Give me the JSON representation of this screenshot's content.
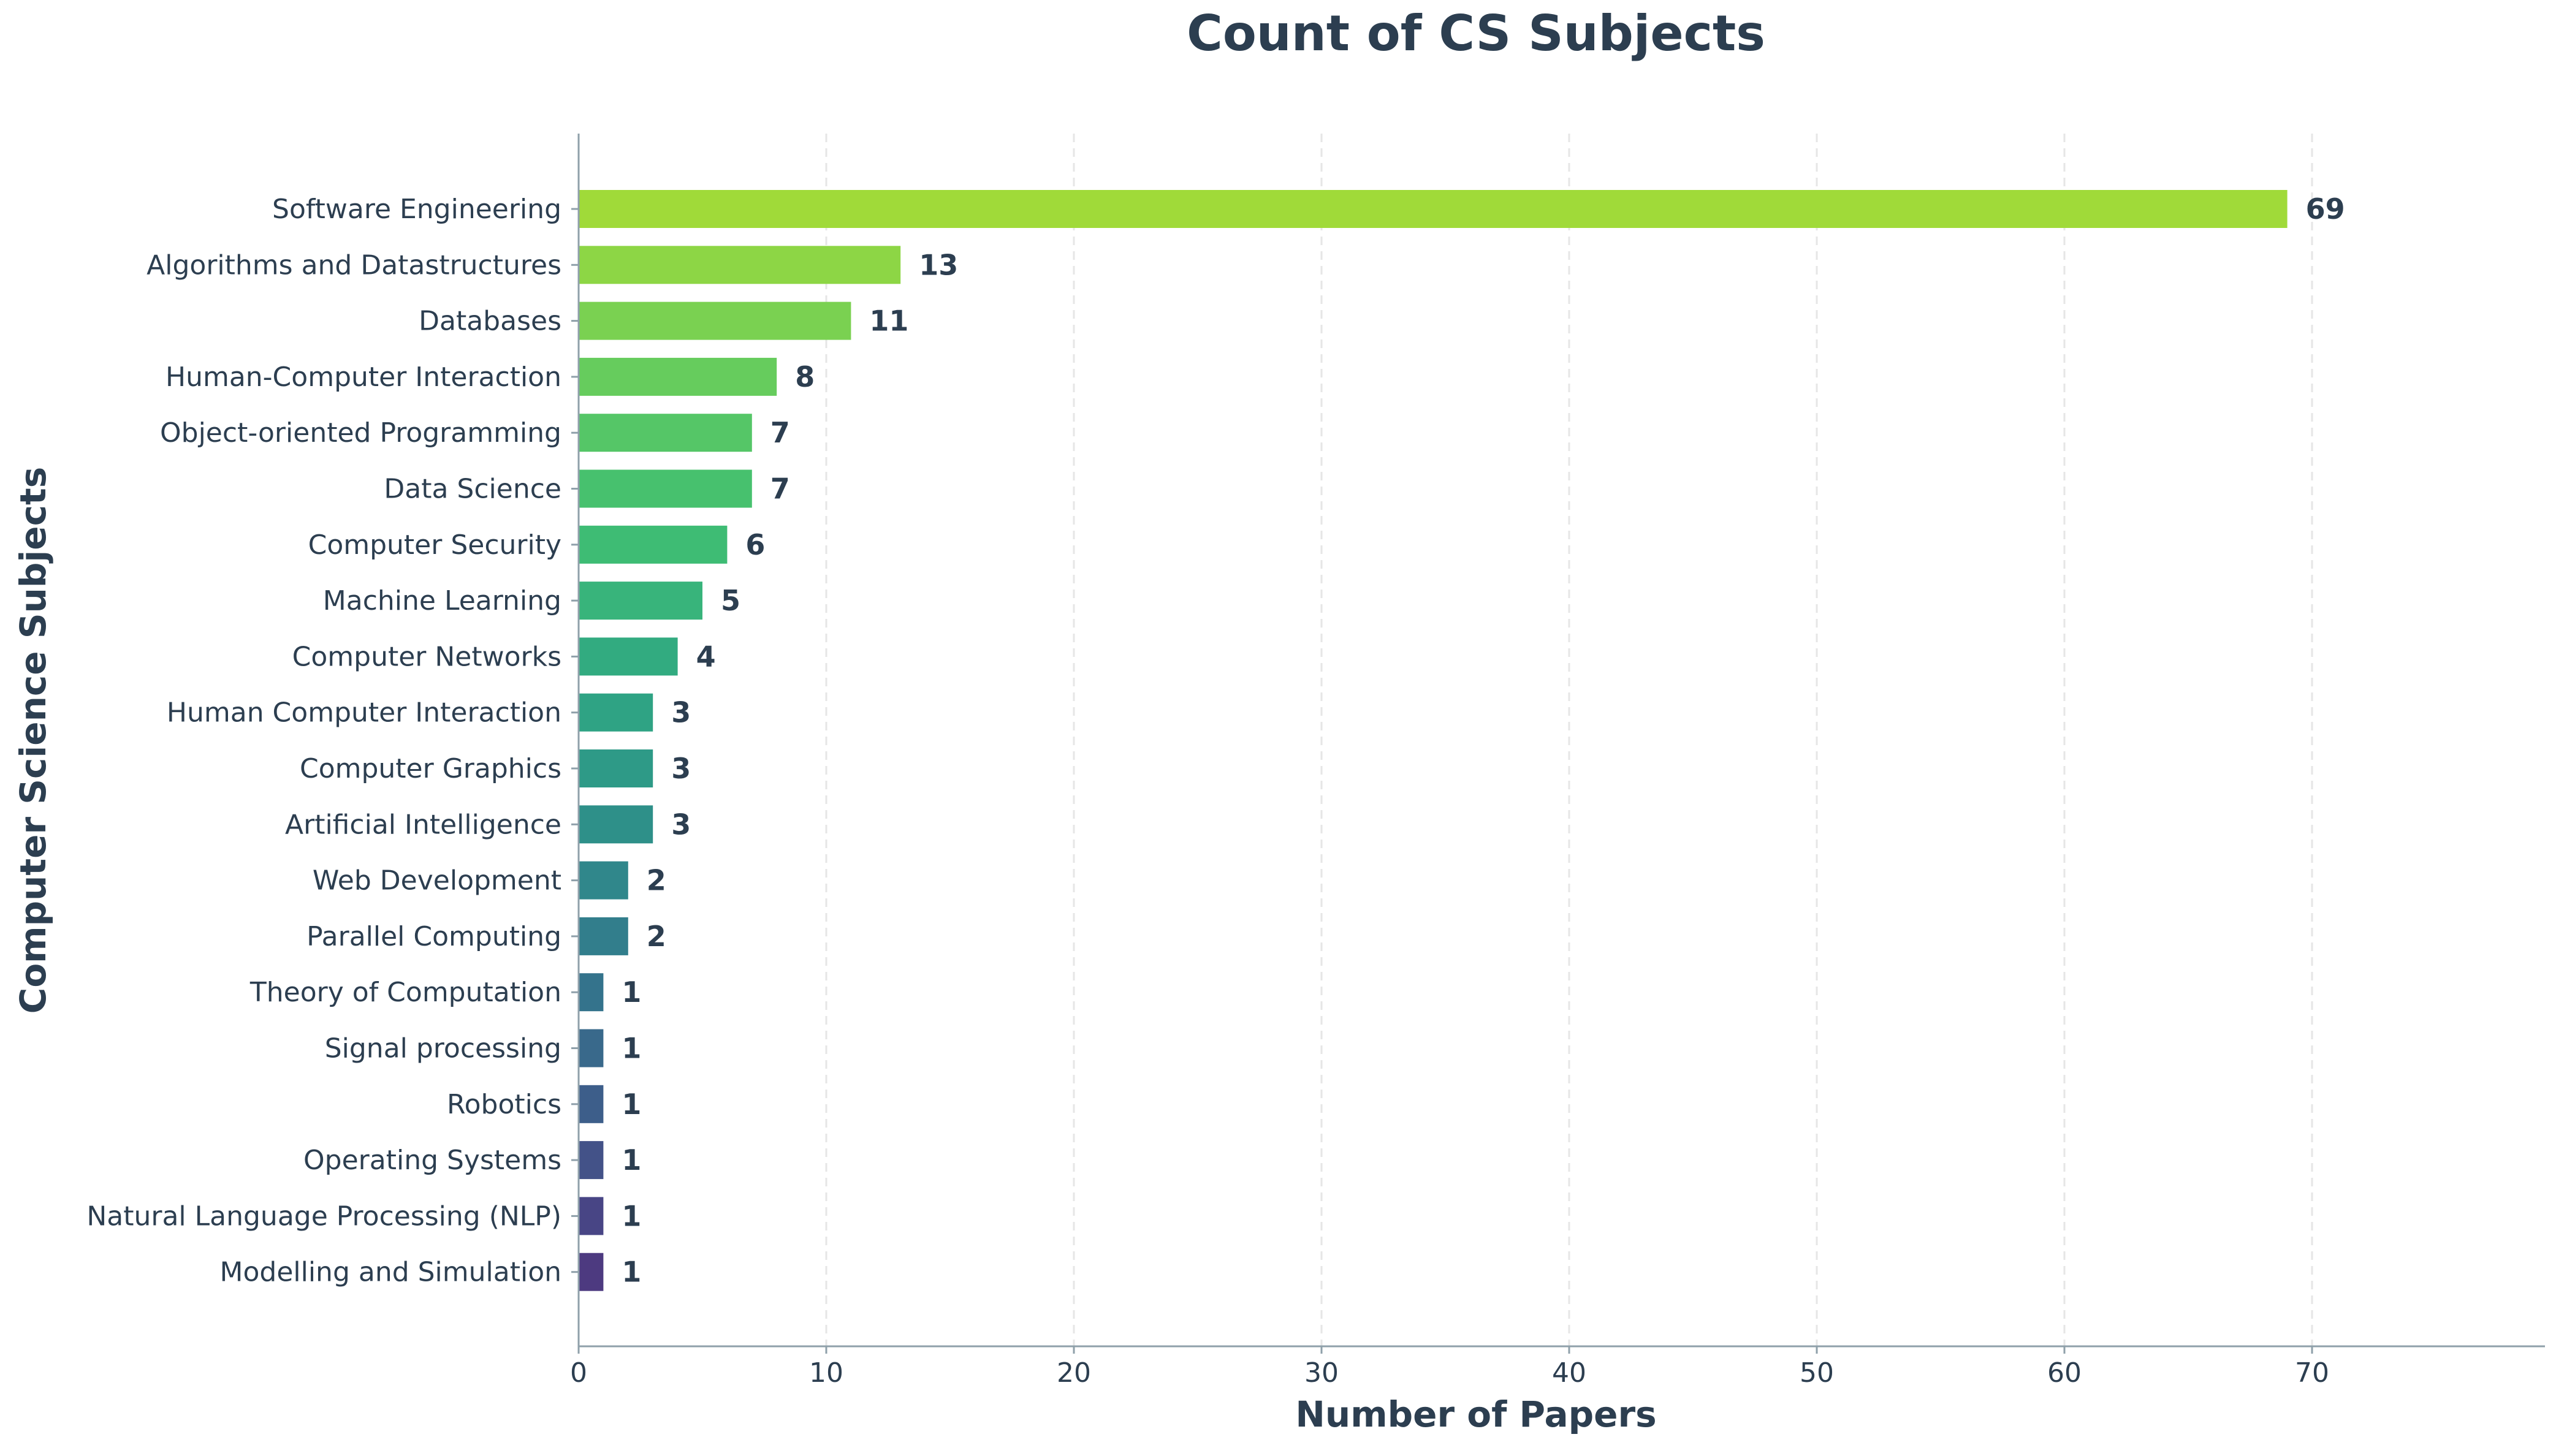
{
  "chart_data": {
    "type": "bar",
    "orientation": "horizontal",
    "title": "Count of CS Subjects",
    "xlabel": "Number of Papers",
    "ylabel": "Computer Science Subjects",
    "xlim": [
      0,
      79.35
    ],
    "xticks": [
      0,
      10,
      20,
      30,
      40,
      50,
      60,
      70
    ],
    "grid": "x-dashed",
    "categories": [
      "Software Engineering",
      "Algorithms and Datastructures",
      "Databases",
      "Human-Computer Interaction",
      "Object-oriented Programming",
      "Data Science",
      "Computer Security",
      "Machine Learning",
      "Computer Networks",
      "Human Computer Interaction",
      "Computer Graphics",
      "Artificial Intelligence",
      "Web Development",
      "Parallel Computing",
      "Theory of Computation",
      "Signal processing",
      "Robotics",
      "Operating Systems",
      "Natural Language Processing (NLP)",
      "Modelling and Simulation"
    ],
    "values": [
      69,
      13,
      11,
      8,
      7,
      7,
      6,
      5,
      4,
      3,
      3,
      3,
      2,
      2,
      1,
      1,
      1,
      1,
      1,
      1
    ],
    "bar_colors": [
      "#a0da39",
      "#8dd645",
      "#7ad151",
      "#66cc5d",
      "#55c667",
      "#47c16e",
      "#3ebc74",
      "#38b47b",
      "#32ab80",
      "#2fa384",
      "#2e9a87",
      "#2e9089",
      "#30878b",
      "#327e8c",
      "#34738c",
      "#39698b",
      "#3d5e8a",
      "#435288",
      "#484585",
      "#4d3a80"
    ]
  },
  "colors": {
    "text": "#2c3e50",
    "axis": "#8fa0aa",
    "grid": "#e6e6e6"
  }
}
